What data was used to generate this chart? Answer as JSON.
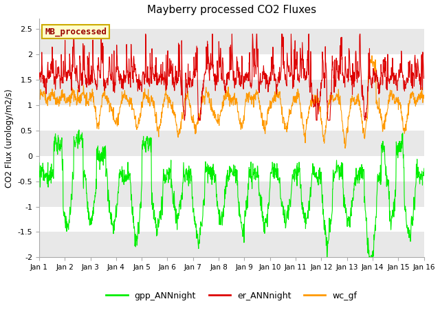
{
  "title": "Mayberry processed CO2 Fluxes",
  "ylabel": "CO2 Flux (urology/m2/s)",
  "xlim": [
    0,
    15
  ],
  "ylim": [
    -2.0,
    2.7
  ],
  "yticks": [
    -2.0,
    -1.5,
    -1.0,
    -0.5,
    0.0,
    0.5,
    1.0,
    1.5,
    2.0,
    2.5
  ],
  "xtick_labels": [
    "Jan 1",
    "Jan 2",
    "Jan 3",
    "Jan 4",
    "Jan 5",
    "Jan 6",
    "Jan 7",
    "Jan 8",
    "Jan 9",
    "Jan 10",
    "Jan 11",
    "Jan 12",
    "Jan 13",
    "Jan 14",
    "Jan 15",
    "Jan 16"
  ],
  "legend_label": "MB_processed",
  "legend_bg": "#ffffcc",
  "legend_edge": "#ccaa00",
  "legend_text_color": "#990000",
  "colors": {
    "gpp": "#00ee00",
    "er": "#dd0000",
    "wc": "#ff9900"
  },
  "line_width": 0.8,
  "plot_bg": "#ffffff",
  "band_color": "#e8e8e8",
  "grid_color": "#dddddd",
  "n_points": 1440,
  "seed": 7
}
